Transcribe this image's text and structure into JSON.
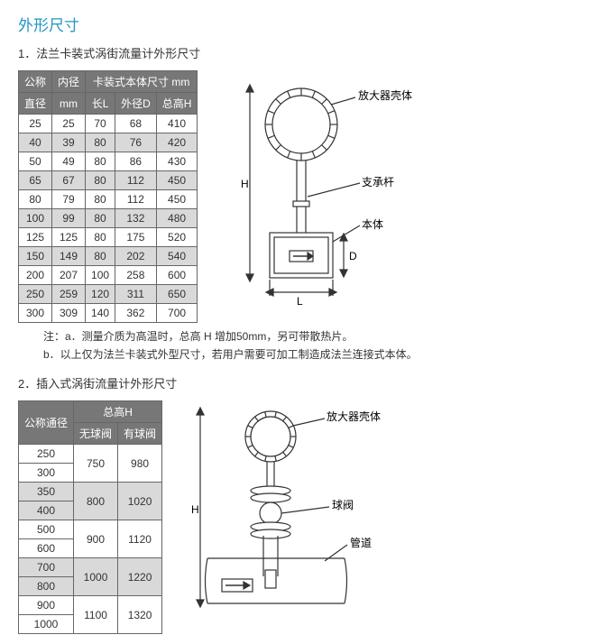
{
  "main_title": "外形尺寸",
  "section1": {
    "title": "1．法兰卡装式涡街流量计外形尺寸",
    "table": {
      "head_top": {
        "col1": "公称",
        "col2": "内径",
        "col3": "卡装式本体尺寸  mm"
      },
      "head_sub": {
        "col1": "直径",
        "col2": "mm",
        "c3a": "长L",
        "c3b": "外径D",
        "c3c": "总高H"
      },
      "rows": [
        [
          "25",
          "25",
          "70",
          "68",
          "410"
        ],
        [
          "40",
          "39",
          "80",
          "76",
          "420"
        ],
        [
          "50",
          "49",
          "80",
          "86",
          "430"
        ],
        [
          "65",
          "67",
          "80",
          "112",
          "450"
        ],
        [
          "80",
          "79",
          "80",
          "112",
          "450"
        ],
        [
          "100",
          "99",
          "80",
          "132",
          "480"
        ],
        [
          "125",
          "125",
          "80",
          "175",
          "520"
        ],
        [
          "150",
          "149",
          "80",
          "202",
          "540"
        ],
        [
          "200",
          "207",
          "100",
          "258",
          "600"
        ],
        [
          "250",
          "259",
          "120",
          "311",
          "650"
        ],
        [
          "300",
          "309",
          "140",
          "362",
          "700"
        ]
      ]
    },
    "notes": {
      "a": "注：a．测量介质为高温时，总高 H 增加50mm，另可带散热片。",
      "b": "b．以上仅为法兰卡装式外型尺寸，若用户需要可加工制造成法兰连接式本体。"
    },
    "diagram": {
      "labels": {
        "amp": "放大器壳体",
        "rod": "支承杆",
        "body": "本体",
        "H": "H",
        "D": "D",
        "L": "L",
        "arrow": "→"
      },
      "colors": {
        "stroke": "#333",
        "fill": "#fff",
        "hatch": "#333"
      }
    }
  },
  "section2": {
    "title": "2．插入式涡街流量计外形尺寸",
    "table": {
      "head_top": {
        "col1": "公称通径",
        "col2": "总高H"
      },
      "head_sub": {
        "c2a": "无球阀",
        "c2b": "有球阀"
      },
      "rows": [
        {
          "d": "250",
          "h1": "750",
          "h2": "980",
          "span": true
        },
        {
          "d": "300"
        },
        {
          "d": "350",
          "h1": "800",
          "h2": "1020",
          "span": true
        },
        {
          "d": "400"
        },
        {
          "d": "500",
          "h1": "900",
          "h2": "1120",
          "span": true
        },
        {
          "d": "600"
        },
        {
          "d": "700",
          "h1": "1000",
          "h2": "1220",
          "span": true
        },
        {
          "d": "800"
        },
        {
          "d": "900",
          "h1": "1100",
          "h2": "1320",
          "span": true
        },
        {
          "d": "1000"
        }
      ]
    },
    "diagram": {
      "labels": {
        "amp": "放大器壳体",
        "valve": "球阀",
        "pipe": "管道",
        "H": "H",
        "arrow": "→"
      },
      "colors": {
        "stroke": "#333",
        "fill": "#fff"
      }
    }
  }
}
